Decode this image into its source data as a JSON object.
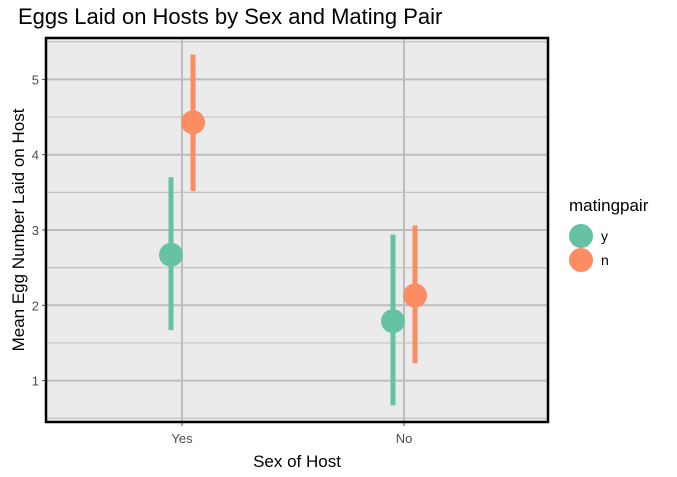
{
  "chart_data": {
    "type": "pointrange",
    "title": "Eggs Laid on Hosts by Sex and Mating Pair",
    "xlabel": "Sex of Host",
    "ylabel": "Mean Egg Number Laid on Host",
    "categories": [
      "Yes",
      "No"
    ],
    "ylim": [
      0.45,
      5.55
    ],
    "yticks": [
      1,
      2,
      3,
      4,
      5
    ],
    "grid": true,
    "legend_title": "matingpair",
    "legend_position": "right",
    "series": [
      {
        "name": "y",
        "color": "#66c2a5",
        "means": [
          2.67,
          1.79
        ],
        "lower": [
          1.67,
          0.67
        ],
        "upper": [
          3.7,
          2.94
        ]
      },
      {
        "name": "n",
        "color": "#fc8d62",
        "means": [
          4.43,
          2.13
        ],
        "lower": [
          3.52,
          1.23
        ],
        "upper": [
          5.33,
          3.06
        ]
      }
    ]
  }
}
